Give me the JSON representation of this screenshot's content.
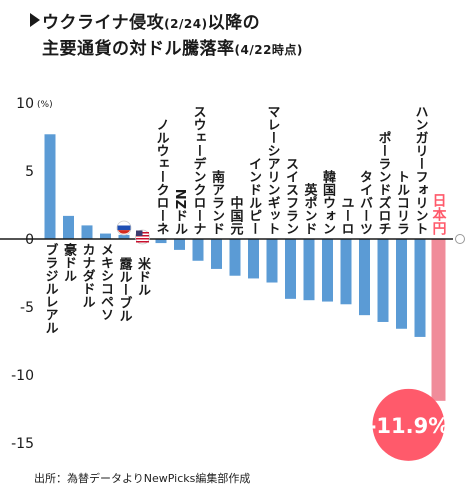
{
  "chart_data": {
    "type": "bar",
    "title": "ウクライナ侵攻",
    "title_date": "(2/24)",
    "title_after": "以降の",
    "subtitle": "主要通貨の対ドル騰落率",
    "subtitle_date": "(4/22時点)",
    "ylabel": "",
    "y_unit": "(%)",
    "ylim": [
      -15,
      10
    ],
    "yticks": [
      10,
      5,
      0,
      -5,
      -10,
      -15
    ],
    "categories": [
      "ブラジルレアル",
      "豪ドル",
      "カナダドル",
      "メキシコペソ",
      "露ルーブル",
      "米ドル",
      "ノルウェークローネ",
      "NZドル",
      "スウェーデンクローナ",
      "南アランド",
      "中国元",
      "インドルピー",
      "マレーシアリンギット",
      "スイスフラン",
      "英ポンド",
      "韓国ウォン",
      "ユーロ",
      "タイバーツ",
      "ポーランドズロチ",
      "トルコリラ",
      "ハンガリーフォリント",
      "日本円"
    ],
    "values": [
      7.7,
      1.7,
      1.0,
      0.4,
      0.3,
      0,
      -0.3,
      -0.8,
      -1.6,
      -2.2,
      -2.7,
      -2.9,
      -3.2,
      -4.4,
      -4.5,
      -4.6,
      -4.8,
      -5.6,
      -6.1,
      -6.6,
      -7.2,
      -11.9
    ],
    "highlight_label": "-11.9%",
    "source": "出所：為替データよりNewPicks編集部作成",
    "colors": {
      "bar": "#5b9bd5",
      "highlight": "#f08c9a",
      "badge": "#ff5a6b",
      "axis": "#1a1a1a"
    },
    "icons": [
      "russia-flag-icon",
      "us-flag-icon"
    ]
  }
}
